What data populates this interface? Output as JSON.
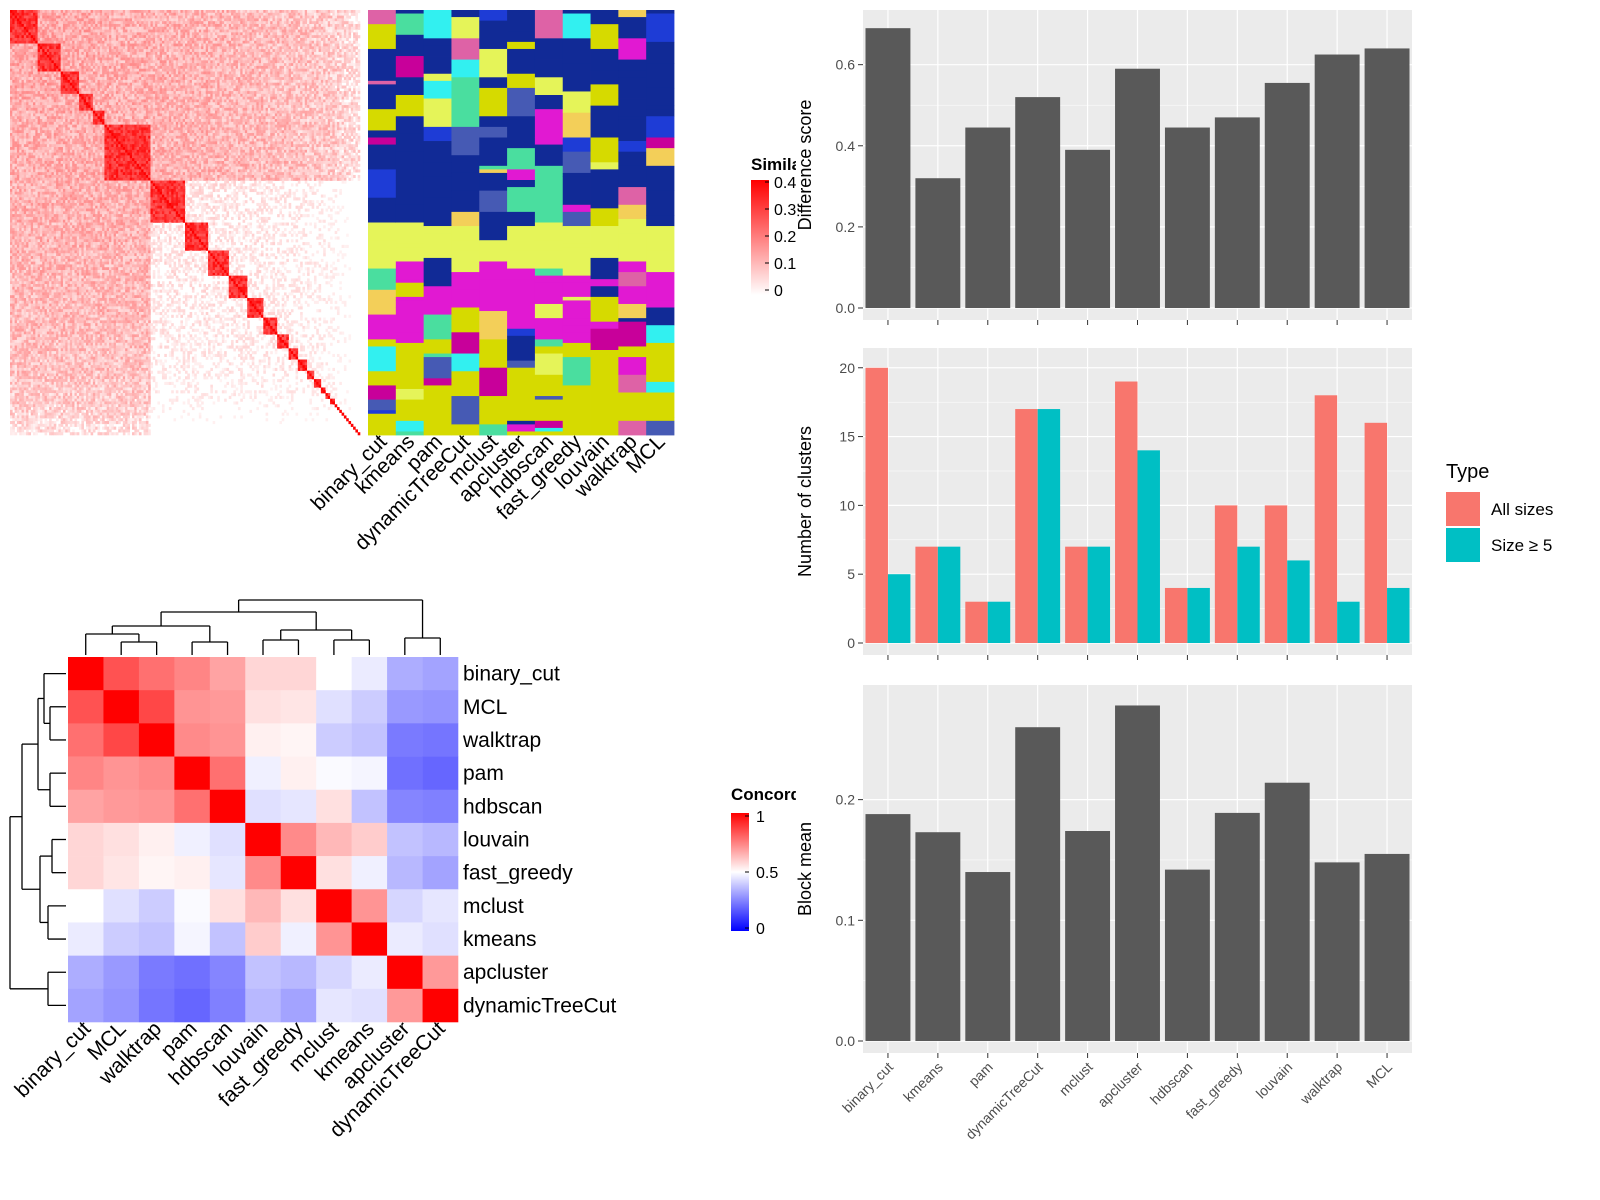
{
  "colors": {
    "bar_gray": "#595959",
    "panel_bg": "#ebebeb",
    "grid": "#ffffff",
    "all_sizes": "#f8766d",
    "size_ge5": "#00bfc4",
    "sim_high": "#ff0000",
    "sim_low": "#ffffff",
    "conc_high": "#ff0000",
    "conc_mid": "#ffffff",
    "conc_low": "#0000ff"
  },
  "similarity_heatmap": {
    "legend_title": "Similarity",
    "legend_ticks": [
      "0.4",
      "0.3",
      "0.2",
      "0.1",
      "0"
    ],
    "method_labels": [
      "binary_cut",
      "kmeans",
      "pam",
      "dynamicTreeCut",
      "mclust",
      "apcluster",
      "hdbscan",
      "fast_greedy",
      "louvain",
      "walktrap",
      "MCL"
    ],
    "block_sizes": [
      12,
      10,
      8,
      6,
      5,
      20,
      15,
      10,
      9,
      8,
      7,
      6,
      5,
      4,
      4,
      3,
      3,
      2,
      2,
      2,
      1,
      1,
      1,
      1,
      1,
      1,
      1,
      1,
      1,
      1,
      1
    ]
  },
  "concordance_heatmap": {
    "legend_title": "Concordance",
    "legend_ticks": [
      "1",
      "0.5",
      "0"
    ],
    "row_labels": [
      "binary_cut",
      "MCL",
      "walktrap",
      "pam",
      "hdbscan",
      "louvain",
      "fast_greedy",
      "mclust",
      "kmeans",
      "apcluster",
      "dynamicTreeCut"
    ],
    "col_labels": [
      "binary_cut",
      "MCL",
      "walktrap",
      "pam",
      "hdbscan",
      "louvain",
      "fast_greedy",
      "mclust",
      "kmeans",
      "apcluster",
      "dynamicTreeCut"
    ],
    "matrix": [
      [
        1.0,
        0.84,
        0.78,
        0.74,
        0.68,
        0.58,
        0.58,
        0.5,
        0.46,
        0.34,
        0.32
      ],
      [
        0.84,
        1.0,
        0.86,
        0.71,
        0.7,
        0.56,
        0.55,
        0.44,
        0.4,
        0.3,
        0.29
      ],
      [
        0.78,
        0.86,
        1.0,
        0.73,
        0.71,
        0.53,
        0.52,
        0.4,
        0.38,
        0.24,
        0.23
      ],
      [
        0.74,
        0.71,
        0.73,
        1.0,
        0.78,
        0.47,
        0.53,
        0.49,
        0.48,
        0.22,
        0.2
      ],
      [
        0.68,
        0.7,
        0.71,
        0.78,
        1.0,
        0.44,
        0.45,
        0.56,
        0.38,
        0.26,
        0.25
      ],
      [
        0.58,
        0.56,
        0.53,
        0.47,
        0.44,
        1.0,
        0.73,
        0.64,
        0.6,
        0.38,
        0.36
      ],
      [
        0.58,
        0.55,
        0.52,
        0.53,
        0.45,
        0.73,
        1.0,
        0.56,
        0.47,
        0.36,
        0.32
      ],
      [
        0.5,
        0.44,
        0.4,
        0.49,
        0.56,
        0.64,
        0.56,
        1.0,
        0.71,
        0.42,
        0.45
      ],
      [
        0.46,
        0.4,
        0.38,
        0.48,
        0.38,
        0.6,
        0.47,
        0.71,
        1.0,
        0.46,
        0.44
      ],
      [
        0.34,
        0.3,
        0.24,
        0.22,
        0.26,
        0.38,
        0.36,
        0.42,
        0.46,
        1.0,
        0.7
      ],
      [
        0.32,
        0.29,
        0.23,
        0.2,
        0.25,
        0.36,
        0.32,
        0.45,
        0.44,
        0.7,
        1.0
      ]
    ]
  },
  "chart_data": [
    {
      "type": "bar",
      "categories": [
        "binary_cut",
        "kmeans",
        "pam",
        "dynamicTreeCut",
        "mclust",
        "apcluster",
        "hdbscan",
        "fast_greedy",
        "louvain",
        "walktrap",
        "MCL"
      ],
      "values": [
        0.69,
        0.32,
        0.445,
        0.52,
        0.39,
        0.59,
        0.445,
        0.47,
        0.555,
        0.625,
        0.64
      ],
      "ylabel": "Difference score",
      "ylim": [
        0,
        0.72
      ],
      "yticks": [
        "0.0",
        "0.2",
        "0.4",
        "0.6"
      ],
      "grid": true
    },
    {
      "type": "bar",
      "categories": [
        "binary_cut",
        "kmeans",
        "pam",
        "dynamicTreeCut",
        "mclust",
        "apcluster",
        "hdbscan",
        "fast_greedy",
        "louvain",
        "walktrap",
        "MCL"
      ],
      "series": [
        {
          "name": "All sizes",
          "values": [
            20,
            7,
            3,
            17,
            7,
            19,
            4,
            10,
            10,
            18,
            16
          ]
        },
        {
          "name": "Size ≥ 5",
          "values": [
            5,
            7,
            3,
            17,
            7,
            14,
            4,
            7,
            6,
            3,
            4
          ]
        }
      ],
      "ylabel": "Number of clusters",
      "ylim": [
        0,
        21
      ],
      "yticks": [
        "0",
        "5",
        "10",
        "15",
        "20"
      ],
      "legend_title": "Type",
      "legend_position": "right",
      "grid": true
    },
    {
      "type": "bar",
      "categories": [
        "binary_cut",
        "kmeans",
        "pam",
        "dynamicTreeCut",
        "mclust",
        "apcluster",
        "hdbscan",
        "fast_greedy",
        "louvain",
        "walktrap",
        "MCL"
      ],
      "values": [
        0.188,
        0.173,
        0.14,
        0.26,
        0.174,
        0.278,
        0.142,
        0.189,
        0.214,
        0.148,
        0.155
      ],
      "ylabel": "Block mean",
      "ylim": [
        0,
        0.29
      ],
      "yticks": [
        "0.0",
        "0.1",
        "0.2"
      ],
      "grid": true
    }
  ]
}
